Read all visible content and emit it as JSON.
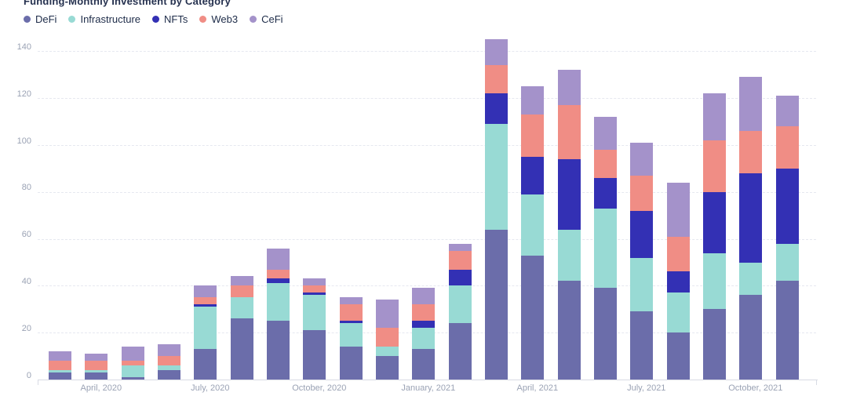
{
  "title": "Funding-Monthly Investment by Category",
  "legend": [
    {
      "label": "DeFi",
      "color": "#6b6daa"
    },
    {
      "label": "Infrastructure",
      "color": "#98dad4"
    },
    {
      "label": "NFTs",
      "color": "#3330b4"
    },
    {
      "label": "Web3",
      "color": "#f08d85"
    },
    {
      "label": "CeFi",
      "color": "#a492ca"
    }
  ],
  "chart_data": {
    "type": "bar",
    "stacked": true,
    "title": "Funding-Monthly Investment by Category",
    "categories": [
      "March, 2020",
      "April, 2020",
      "May, 2020",
      "June, 2020",
      "July, 2020",
      "August, 2020",
      "September, 2020",
      "October, 2020",
      "November, 2020",
      "December, 2020",
      "January, 2021",
      "February, 2021",
      "March, 2021",
      "April, 2021",
      "May, 2021",
      "June, 2021",
      "July, 2021",
      "August, 2021",
      "September, 2021",
      "October, 2021",
      "November, 2021"
    ],
    "series": [
      {
        "name": "DeFi",
        "color": "#6b6daa",
        "values": [
          3,
          3,
          1,
          4,
          13,
          26,
          25,
          21,
          14,
          10,
          13,
          24,
          64,
          53,
          42,
          39,
          29,
          20,
          30,
          36,
          42
        ]
      },
      {
        "name": "Infrastructure",
        "color": "#98dad4",
        "values": [
          1,
          1,
          5,
          2,
          18,
          9,
          16,
          15,
          10,
          4,
          9,
          16,
          45,
          26,
          22,
          34,
          23,
          17,
          24,
          14,
          16
        ]
      },
      {
        "name": "NFTs",
        "color": "#3330b4",
        "values": [
          0,
          0,
          0,
          0,
          1,
          0,
          2,
          1,
          1,
          0,
          3,
          7,
          13,
          16,
          30,
          13,
          20,
          9,
          26,
          38,
          32
        ]
      },
      {
        "name": "Web3",
        "color": "#f08d85",
        "values": [
          4,
          4,
          2,
          4,
          3,
          5,
          4,
          3,
          7,
          8,
          7,
          8,
          12,
          18,
          23,
          12,
          15,
          15,
          22,
          18,
          18
        ]
      },
      {
        "name": "CeFi",
        "color": "#a492ca",
        "values": [
          4,
          3,
          6,
          5,
          5,
          4,
          9,
          3,
          3,
          12,
          7,
          3,
          11,
          12,
          15,
          14,
          14,
          23,
          20,
          23,
          13
        ]
      }
    ],
    "x_tick_labels": [
      "April, 2020",
      "July, 2020",
      "October, 2020",
      "January, 2021",
      "April, 2021",
      "July, 2021",
      "October, 2021"
    ],
    "x_tick_indices": [
      1,
      4,
      7,
      10,
      13,
      16,
      19
    ],
    "y_ticks": [
      0,
      20,
      40,
      60,
      80,
      100,
      120,
      140
    ],
    "ylim": [
      0,
      148
    ],
    "xlabel": "",
    "ylabel": "",
    "grid": "horizontal-dashed",
    "legend_position": "top-left"
  }
}
